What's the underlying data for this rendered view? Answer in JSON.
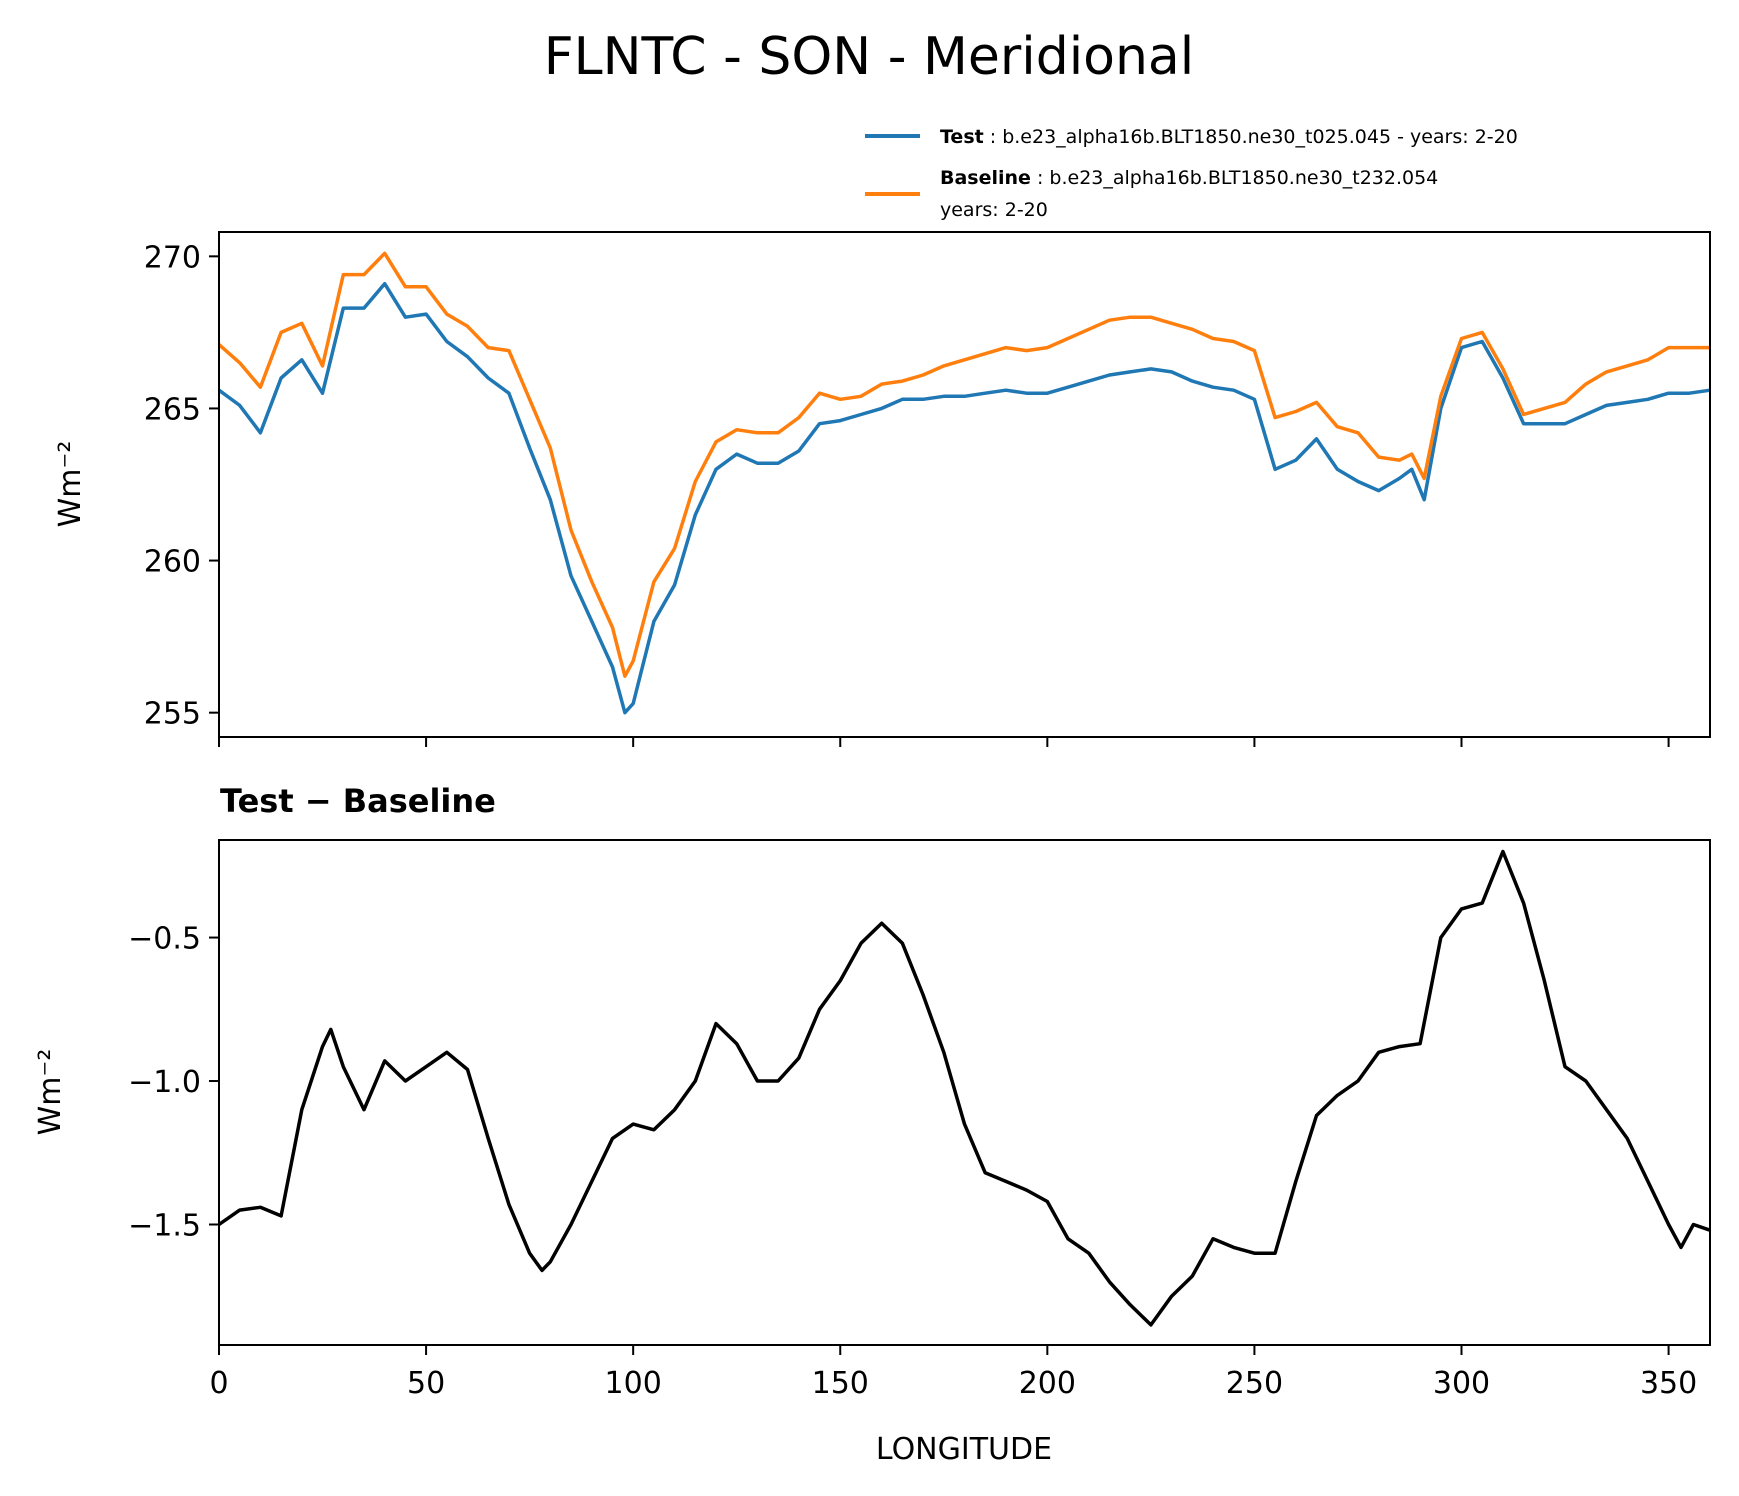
{
  "title": "FLNTC - SON - Meridional",
  "colors": {
    "test": "#1f77b4",
    "baseline": "#ff7f0e",
    "diff": "#000000"
  },
  "legend": [
    {
      "name": "Test",
      "sep": " : ",
      "text": "b.e23_alpha16b.BLT1850.ne30_t025.045 - years: 2-20",
      "text2": ""
    },
    {
      "name": "Baseline",
      "sep": " : ",
      "text": "b.e23_alpha16b.BLT1850.ne30_t232.054",
      "text2": "years: 2-20"
    }
  ],
  "chart_data": [
    {
      "type": "line",
      "title": "",
      "xlabel": "",
      "ylabel": "Wm⁻²",
      "xlim": [
        0,
        360
      ],
      "ylim": [
        254.2,
        270.8
      ],
      "yticks": [
        255,
        260,
        265,
        270
      ],
      "legend_placement": "above-right",
      "x": [
        0,
        5,
        10,
        15,
        20,
        25,
        30,
        35,
        40,
        45,
        50,
        55,
        60,
        65,
        70,
        75,
        80,
        85,
        90,
        95,
        98,
        100,
        105,
        110,
        115,
        120,
        125,
        130,
        135,
        140,
        145,
        150,
        155,
        160,
        165,
        170,
        175,
        180,
        185,
        190,
        195,
        200,
        205,
        210,
        215,
        220,
        225,
        230,
        235,
        240,
        245,
        250,
        255,
        260,
        265,
        270,
        275,
        280,
        285,
        288,
        291,
        295,
        300,
        305,
        310,
        315,
        320,
        325,
        330,
        335,
        340,
        345,
        350,
        355,
        360
      ],
      "series": [
        {
          "name": "Test",
          "values": [
            265.6,
            265.1,
            264.2,
            266.0,
            266.6,
            265.5,
            268.3,
            268.3,
            269.1,
            268.0,
            268.1,
            267.2,
            266.7,
            266.0,
            265.5,
            263.7,
            262.0,
            259.5,
            258.0,
            256.5,
            255.0,
            255.3,
            258.0,
            259.2,
            261.5,
            263.0,
            263.5,
            263.2,
            263.2,
            263.6,
            264.5,
            264.6,
            264.8,
            265.0,
            265.3,
            265.3,
            265.4,
            265.4,
            265.5,
            265.6,
            265.5,
            265.5,
            265.7,
            265.9,
            266.1,
            266.2,
            266.3,
            266.2,
            265.9,
            265.7,
            265.6,
            265.3,
            263.0,
            263.3,
            264.0,
            263.0,
            262.6,
            262.3,
            262.7,
            263.0,
            262.0,
            265.0,
            267.0,
            267.2,
            266.0,
            264.5,
            264.5,
            264.5,
            264.8,
            265.1,
            265.2,
            265.3,
            265.5,
            265.5,
            265.6
          ]
        },
        {
          "name": "Baseline",
          "values": [
            267.1,
            266.5,
            265.7,
            267.5,
            267.8,
            266.4,
            269.4,
            269.4,
            270.1,
            269.0,
            269.0,
            268.1,
            267.7,
            267.0,
            266.9,
            265.3,
            263.7,
            261.0,
            259.3,
            257.8,
            256.2,
            256.7,
            259.3,
            260.4,
            262.6,
            263.9,
            264.3,
            264.2,
            264.2,
            264.7,
            265.5,
            265.3,
            265.4,
            265.8,
            265.9,
            266.1,
            266.4,
            266.6,
            266.8,
            267.0,
            266.9,
            267.0,
            267.3,
            267.6,
            267.9,
            268.0,
            268.0,
            267.8,
            267.6,
            267.3,
            267.2,
            266.9,
            264.7,
            264.9,
            265.2,
            264.4,
            264.2,
            263.4,
            263.3,
            263.5,
            262.7,
            265.4,
            267.3,
            267.5,
            266.3,
            264.8,
            265.0,
            265.2,
            265.8,
            266.2,
            266.4,
            266.6,
            267.0,
            267.0,
            267.0
          ]
        }
      ]
    },
    {
      "type": "line",
      "title": "Test − Baseline",
      "xlabel": "LONGITUDE",
      "ylabel": "Wm⁻²",
      "xlim": [
        0,
        360
      ],
      "ylim": [
        -1.92,
        -0.16
      ],
      "xticks": [
        0,
        50,
        100,
        150,
        200,
        250,
        300,
        350
      ],
      "yticks": [
        -1.5,
        -1.0,
        -0.5
      ],
      "ytick_labels": [
        "−1.5",
        "−1.0",
        "−0.5"
      ],
      "x": [
        0,
        5,
        10,
        15,
        20,
        25,
        27,
        30,
        35,
        40,
        45,
        50,
        55,
        60,
        65,
        70,
        75,
        78,
        80,
        85,
        90,
        95,
        100,
        105,
        110,
        115,
        120,
        125,
        130,
        135,
        140,
        145,
        150,
        155,
        160,
        165,
        170,
        175,
        180,
        185,
        190,
        195,
        200,
        205,
        210,
        215,
        220,
        225,
        230,
        235,
        240,
        245,
        250,
        255,
        260,
        265,
        270,
        275,
        280,
        285,
        290,
        295,
        300,
        305,
        310,
        315,
        320,
        325,
        330,
        335,
        340,
        345,
        350,
        353,
        356,
        360
      ],
      "series": [
        {
          "name": "",
          "values": [
            -1.5,
            -1.45,
            -1.44,
            -1.47,
            -1.1,
            -0.88,
            -0.82,
            -0.95,
            -1.1,
            -0.93,
            -1.0,
            -0.95,
            -0.9,
            -0.96,
            -1.2,
            -1.43,
            -1.6,
            -1.66,
            -1.63,
            -1.5,
            -1.35,
            -1.2,
            -1.15,
            -1.17,
            -1.1,
            -1.0,
            -0.8,
            -0.87,
            -1.0,
            -1.0,
            -0.92,
            -0.75,
            -0.65,
            -0.52,
            -0.45,
            -0.52,
            -0.7,
            -0.9,
            -1.15,
            -1.32,
            -1.35,
            -1.38,
            -1.42,
            -1.55,
            -1.6,
            -1.7,
            -1.78,
            -1.85,
            -1.75,
            -1.68,
            -1.55,
            -1.58,
            -1.6,
            -1.6,
            -1.35,
            -1.12,
            -1.05,
            -1.0,
            -0.9,
            -0.88,
            -0.87,
            -0.5,
            -0.4,
            -0.38,
            -0.2,
            -0.38,
            -0.65,
            -0.95,
            -1.0,
            -1.1,
            -1.2,
            -1.35,
            -1.5,
            -1.58,
            -1.5,
            -1.52
          ]
        }
      ]
    }
  ]
}
